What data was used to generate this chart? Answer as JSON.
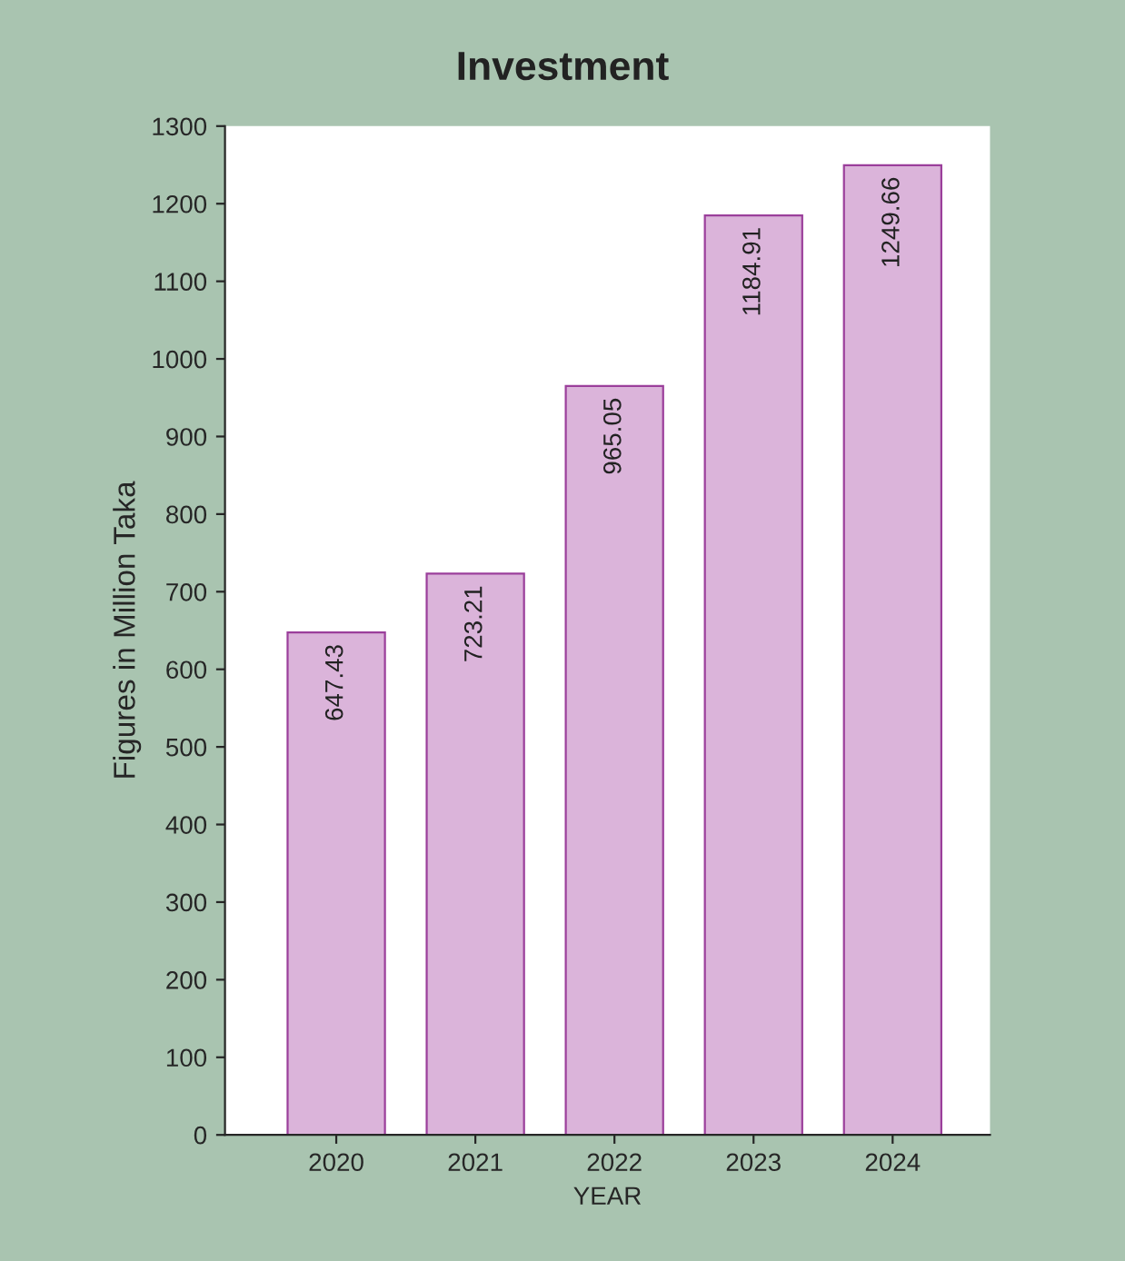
{
  "chart_data": {
    "type": "bar",
    "title": "Investment",
    "xlabel": "YEAR",
    "ylabel": "Figures in Million Taka",
    "categories": [
      "2020",
      "2021",
      "2022",
      "2023",
      "2024"
    ],
    "values": [
      647.43,
      723.21,
      965.05,
      1184.91,
      1249.66
    ],
    "color": "#dbb4da",
    "ylim": [
      0,
      1300
    ],
    "yticks": [
      0,
      100,
      200,
      300,
      400,
      500,
      600,
      700,
      800,
      900,
      1000,
      1100,
      1200,
      1300
    ],
    "data_labels": true,
    "grid": false,
    "legend": false
  }
}
